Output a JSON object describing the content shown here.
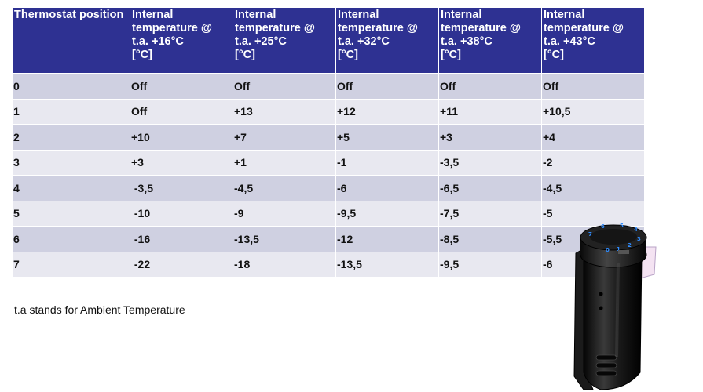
{
  "table": {
    "headers": [
      "Thermostat position",
      "Internal\ntemperature @\nt.a. +16°C\n[°C]",
      "Internal\ntemperature @\nt.a. +25°C\n[°C]",
      "Internal\ntemperature @\nt.a. +32°C\n[°C]",
      "Internal\ntemperature @\nt.a. +38°C\n[°C]",
      "Internal\ntemperature @\nt.a. +43°C\n[°C]"
    ],
    "rows": [
      [
        "0",
        "Off",
        "Off",
        "Off",
        "Off",
        "Off"
      ],
      [
        "1",
        "Off",
        "+13",
        "+12",
        "+11",
        "+10,5"
      ],
      [
        "2",
        "+10",
        "+7",
        "+5",
        "+3",
        "+4"
      ],
      [
        "3",
        "+3",
        "+1",
        "-1",
        "-3,5",
        "-2"
      ],
      [
        "4",
        " -3,5",
        "-4,5",
        "-6",
        "-6,5",
        "-4,5"
      ],
      [
        "5",
        " -10",
        "-9",
        "-9,5",
        "-7,5",
        "-5"
      ],
      [
        "6",
        " -16",
        "-13,5",
        "-12",
        "-8,5",
        "-5,5"
      ],
      [
        "7",
        " -22",
        "-18",
        "-13,5",
        "-9,5",
        "-6"
      ]
    ]
  },
  "note": "t.a stands for Ambient Temperature",
  "image": {
    "icon": "thermostat-device-image",
    "dial_digits": [
      "0",
      "1",
      "2",
      "3",
      "4",
      "5",
      "6",
      "7"
    ]
  },
  "colors": {
    "header_bg": "#2e3192",
    "row_odd": "#cfd0e1",
    "row_even": "#e8e8f0",
    "dial_digits": "#2f8cff"
  }
}
